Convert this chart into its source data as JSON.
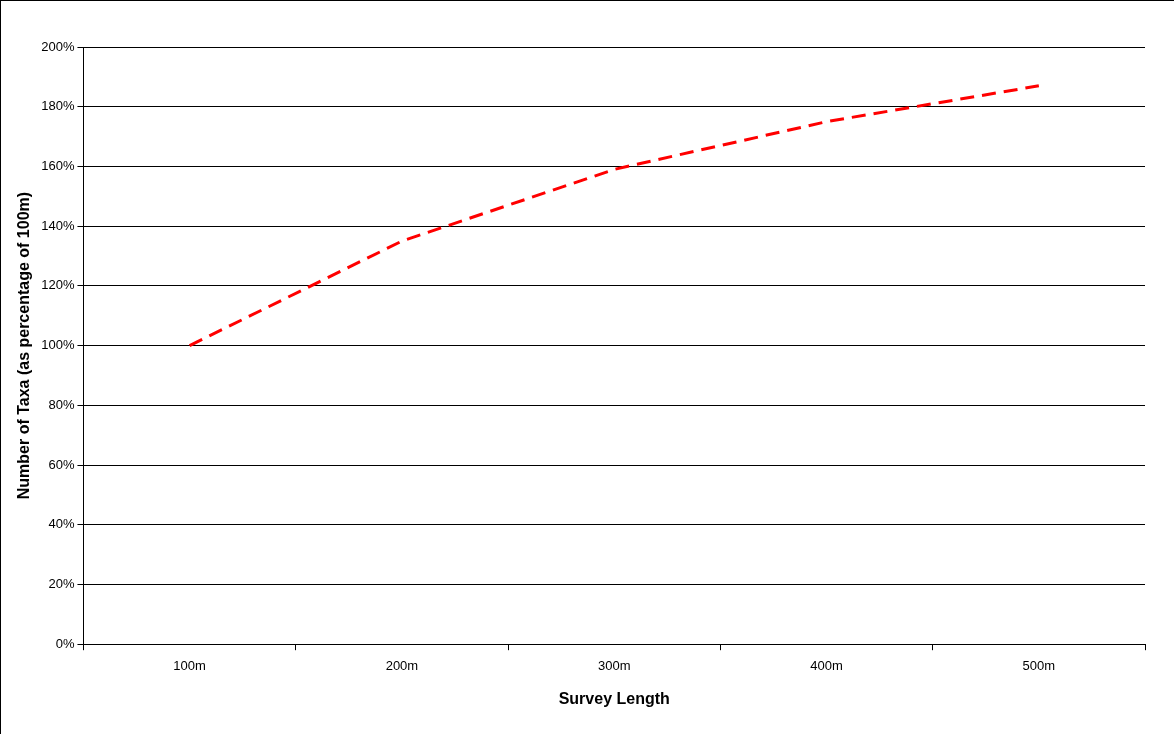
{
  "chart_data": {
    "type": "line",
    "xlabel": "Survey Length",
    "ylabel": "Number of Taxa (as percentage of 100m)",
    "categories": [
      "100m",
      "200m",
      "300m",
      "400m",
      "500m"
    ],
    "series": [
      {
        "color": "#ff0000",
        "values": [
          100,
          135,
          159,
          175,
          187
        ]
      }
    ],
    "ylim": [
      0,
      200
    ],
    "yticks": [
      {
        "value": 0,
        "label": "0%"
      },
      {
        "value": 20,
        "label": "20%"
      },
      {
        "value": 40,
        "label": "40%"
      },
      {
        "value": 60,
        "label": "60%"
      },
      {
        "value": 80,
        "label": "80%"
      },
      {
        "value": 100,
        "label": "100%"
      },
      {
        "value": 120,
        "label": "120%"
      },
      {
        "value": 140,
        "label": "140%"
      },
      {
        "value": 160,
        "label": "160%"
      },
      {
        "value": 180,
        "label": "180%"
      },
      {
        "value": 200,
        "label": "200%"
      }
    ],
    "grid": "y",
    "legend": false,
    "marker": "none",
    "line_style": "dashed"
  }
}
